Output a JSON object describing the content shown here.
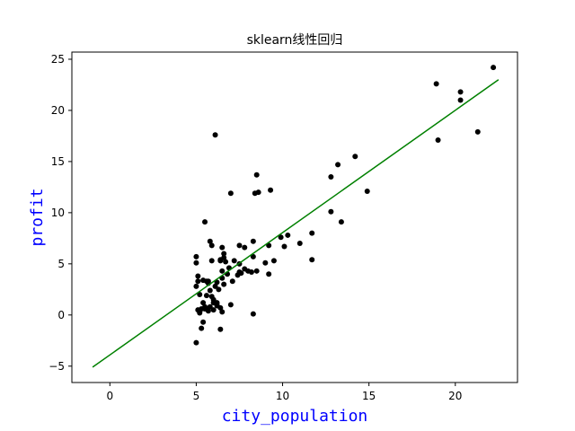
{
  "chart_data": {
    "type": "scatter",
    "title": "sklearn线性回归",
    "xlabel": "city_population",
    "ylabel": "profit",
    "xlim": [
      -2.2,
      23.6
    ],
    "ylim": [
      -6.6,
      25.7
    ],
    "xticks": [
      0,
      5,
      10,
      15,
      20
    ],
    "yticks": [
      -5,
      0,
      5,
      10,
      15,
      20,
      25
    ],
    "grid": false,
    "label_color": "#0000ff",
    "series": [
      {
        "type": "scatter",
        "color": "#000000",
        "points": [
          [
            6.1,
            17.6
          ],
          [
            5.5,
            9.1
          ],
          [
            8.5,
            13.7
          ],
          [
            7.0,
            11.9
          ],
          [
            5.9,
            6.8
          ],
          [
            8.4,
            11.9
          ],
          [
            5.6,
            3.3
          ],
          [
            8.6,
            12.0
          ],
          [
            6.5,
            6.6
          ],
          [
            5.1,
            3.8
          ],
          [
            5.7,
            3.3
          ],
          [
            14.2,
            15.5
          ],
          [
            5.7,
            3.1
          ],
          [
            6.5,
            4.3
          ],
          [
            5.3,
            0.6
          ],
          [
            6.4,
            5.3
          ],
          [
            5.6,
            0.6
          ],
          [
            5.4,
            3.4
          ],
          [
            6.4,
            5.4
          ],
          [
            5.1,
            3.3
          ],
          [
            5.0,
            5.7
          ],
          [
            5.9,
            1.8
          ],
          [
            5.0,
            2.8
          ],
          [
            5.4,
            -0.7
          ],
          [
            5.2,
            0.3
          ],
          [
            6.2,
            1.0
          ],
          [
            5.3,
            -1.3
          ],
          [
            6.4,
            -1.4
          ],
          [
            6.0,
            1.5
          ],
          [
            5.5,
            0.6
          ],
          [
            5.2,
            2.0
          ],
          [
            18.9,
            22.6
          ],
          [
            5.1,
            0.5
          ],
          [
            6.0,
            1.2
          ],
          [
            5.6,
            1.9
          ],
          [
            5.0,
            5.1
          ],
          [
            6.2,
            3.2
          ],
          [
            6.8,
            4.0
          ],
          [
            7.5,
            4.2
          ],
          [
            7.8,
            4.5
          ],
          [
            8.2,
            4.2
          ],
          [
            9.2,
            6.8
          ],
          [
            10.1,
            6.7
          ],
          [
            11.7,
            8.0
          ],
          [
            12.8,
            13.5
          ],
          [
            13.2,
            14.7
          ],
          [
            20.3,
            21.8
          ],
          [
            20.3,
            21.0
          ],
          [
            21.3,
            17.9
          ],
          [
            22.2,
            24.2
          ],
          [
            19.0,
            17.1
          ],
          [
            14.9,
            12.1
          ],
          [
            9.3,
            12.2
          ],
          [
            8.3,
            5.7
          ],
          [
            9.5,
            5.3
          ],
          [
            7.5,
            6.8
          ],
          [
            7.8,
            6.6
          ],
          [
            8.3,
            7.2
          ],
          [
            9.0,
            5.1
          ],
          [
            9.9,
            7.6
          ],
          [
            10.3,
            7.8
          ],
          [
            11.0,
            7.0
          ],
          [
            12.8,
            10.1
          ],
          [
            13.4,
            9.1
          ],
          [
            11.7,
            5.4
          ],
          [
            9.2,
            4.0
          ],
          [
            8.5,
            4.3
          ],
          [
            7.4,
            3.9
          ],
          [
            7.1,
            3.3
          ],
          [
            6.9,
            4.6
          ],
          [
            6.6,
            3.0
          ],
          [
            6.3,
            2.5
          ],
          [
            6.1,
            2.8
          ],
          [
            5.8,
            2.4
          ],
          [
            6.2,
            1.2
          ],
          [
            6.5,
            0.3
          ],
          [
            7.0,
            1.0
          ],
          [
            8.3,
            0.1
          ],
          [
            5.0,
            -2.7
          ],
          [
            5.2,
            0.2
          ],
          [
            5.4,
            1.2
          ],
          [
            5.5,
            0.8
          ],
          [
            5.7,
            0.4
          ],
          [
            5.8,
            0.8
          ],
          [
            6.0,
            0.5
          ],
          [
            6.2,
            0.9
          ],
          [
            6.4,
            0.7
          ],
          [
            6.5,
            3.6
          ],
          [
            6.6,
            5.6
          ],
          [
            6.7,
            5.2
          ],
          [
            7.2,
            5.3
          ],
          [
            7.5,
            5.0
          ],
          [
            7.6,
            4.1
          ],
          [
            8.0,
            4.3
          ],
          [
            5.8,
            7.2
          ],
          [
            5.9,
            5.3
          ],
          [
            6.6,
            6.0
          ]
        ]
      },
      {
        "type": "line",
        "color": "#008000",
        "points": [
          [
            -1.0,
            -5.1
          ],
          [
            22.5,
            23.0
          ]
        ]
      }
    ]
  }
}
